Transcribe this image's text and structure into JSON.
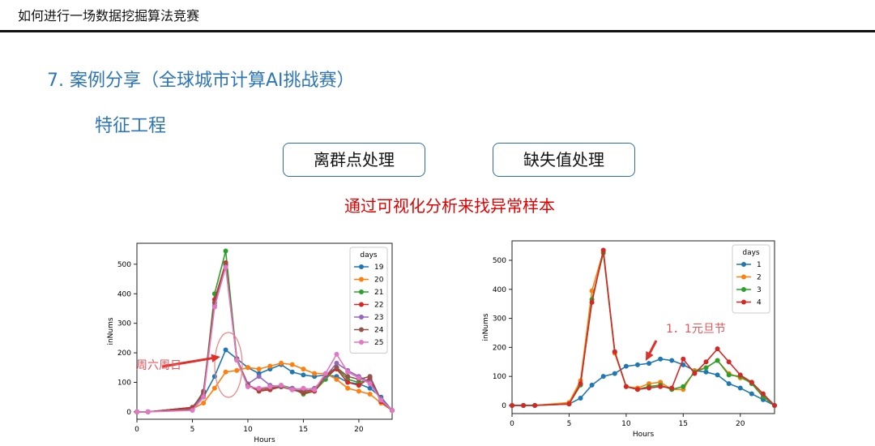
{
  "header": {
    "title": "如何进行一场数据挖掘算法竞赛"
  },
  "section": {
    "title": "7. 案例分享（全球城市计算AI挑战赛）"
  },
  "subsection": {
    "title": "特征工程"
  },
  "buttons": [
    "离群点处理",
    "缺失值处理"
  ],
  "highlight": "通过可视化分析来找异常样本",
  "chart_data": [
    {
      "type": "line",
      "xlabel": "Hours",
      "ylabel": "inNums",
      "legend_title": "days",
      "legend": "upper right",
      "annotation": "周六周日",
      "x": [
        0,
        1,
        5,
        6,
        7,
        8,
        9,
        10,
        11,
        12,
        13,
        14,
        15,
        16,
        17,
        18,
        19,
        20,
        21,
        22,
        23
      ],
      "xlim": [
        0,
        23
      ],
      "ylim": [
        -25,
        571
      ],
      "xticks": [
        0,
        5,
        10,
        15,
        20
      ],
      "yticks": [
        0,
        100,
        200,
        300,
        400,
        500
      ],
      "series": [
        {
          "name": "19",
          "color": "#1f77b4",
          "values": [
            0,
            0,
            15,
            50,
            120,
            210,
            180,
            150,
            130,
            145,
            160,
            135,
            125,
            120,
            125,
            120,
            100,
            95,
            80,
            50,
            5
          ]
        },
        {
          "name": "20",
          "color": "#ff7f0e",
          "values": [
            0,
            0,
            10,
            30,
            80,
            135,
            140,
            150,
            145,
            155,
            165,
            160,
            145,
            130,
            130,
            110,
            80,
            70,
            60,
            30,
            5
          ]
        },
        {
          "name": "21",
          "color": "#2ca02c",
          "values": [
            0,
            0,
            15,
            60,
            400,
            545,
            180,
            90,
            75,
            80,
            90,
            80,
            60,
            70,
            110,
            150,
            110,
            100,
            110,
            35,
            5
          ]
        },
        {
          "name": "22",
          "color": "#d62728",
          "values": [
            0,
            0,
            15,
            65,
            380,
            505,
            175,
            90,
            70,
            75,
            85,
            75,
            65,
            70,
            120,
            145,
            100,
            90,
            115,
            35,
            5
          ]
        },
        {
          "name": "23",
          "color": "#9467bd",
          "values": [
            0,
            0,
            10,
            55,
            360,
            495,
            180,
            95,
            120,
            90,
            85,
            80,
            75,
            80,
            120,
            165,
            140,
            120,
            100,
            45,
            5
          ]
        },
        {
          "name": "24",
          "color": "#8c564b",
          "values": [
            0,
            0,
            10,
            70,
            370,
            500,
            180,
            90,
            75,
            80,
            85,
            75,
            70,
            75,
            125,
            150,
            120,
            110,
            120,
            40,
            5
          ]
        },
        {
          "name": "25",
          "color": "#e377c2",
          "values": [
            0,
            0,
            5,
            50,
            355,
            490,
            175,
            85,
            80,
            85,
            90,
            75,
            80,
            75,
            130,
            195,
            135,
            115,
            95,
            40,
            5
          ]
        }
      ]
    },
    {
      "type": "line",
      "xlabel": "Hours",
      "ylabel": "inNums",
      "legend_title": "days",
      "legend": "upper right",
      "annotation": "1．1元旦节",
      "x": [
        0,
        1,
        2,
        5,
        6,
        7,
        8,
        9,
        10,
        11,
        12,
        13,
        14,
        15,
        16,
        17,
        18,
        19,
        20,
        21,
        22,
        23
      ],
      "xlim": [
        0,
        23
      ],
      "ylim": [
        -28,
        567
      ],
      "xticks": [
        0,
        5,
        10,
        15,
        20
      ],
      "yticks": [
        0,
        100,
        200,
        300,
        400,
        500
      ],
      "series": [
        {
          "name": "1",
          "color": "#1f77b4",
          "values": [
            0,
            0,
            0,
            5,
            25,
            70,
            100,
            110,
            135,
            140,
            145,
            160,
            155,
            140,
            120,
            115,
            105,
            75,
            60,
            40,
            20,
            0
          ]
        },
        {
          "name": "2",
          "color": "#ff7f0e",
          "values": [
            0,
            0,
            0,
            10,
            85,
            395,
            530,
            180,
            65,
            60,
            75,
            80,
            55,
            55,
            120,
            130,
            155,
            110,
            95,
            80,
            35,
            0
          ]
        },
        {
          "name": "3",
          "color": "#2ca02c",
          "values": [
            0,
            0,
            0,
            5,
            70,
            365,
            525,
            185,
            65,
            55,
            65,
            70,
            55,
            65,
            115,
            130,
            155,
            105,
            100,
            75,
            30,
            0
          ]
        },
        {
          "name": "4",
          "color": "#d62728",
          "values": [
            0,
            0,
            0,
            5,
            75,
            355,
            535,
            185,
            65,
            55,
            60,
            65,
            60,
            160,
            110,
            150,
            195,
            150,
            105,
            80,
            40,
            0
          ]
        }
      ]
    }
  ]
}
